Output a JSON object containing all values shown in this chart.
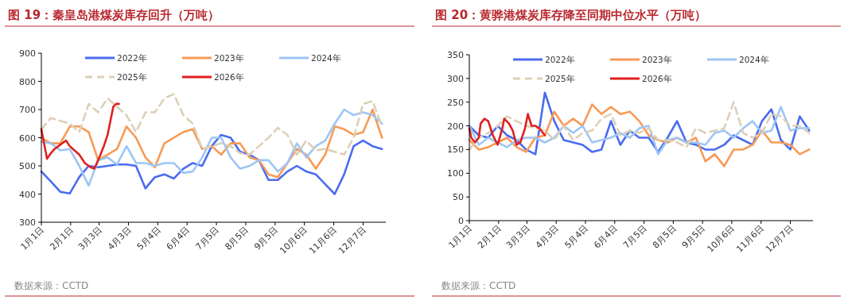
{
  "chart_data": [
    {
      "type": "line",
      "title": "图 19：秦皇岛港煤炭库存回升（万吨）",
      "annotations": [
        "数据来源：CCTD"
      ],
      "legend": "top",
      "x": [
        "--01-01",
        "--01-11",
        "--01-21",
        "--01-31",
        "--02-10",
        "--02-20",
        "--03-02",
        "--03-12",
        "--03-22",
        "--04-01",
        "--04-11",
        "--04-21",
        "--05-01",
        "--05-11",
        "--05-21",
        "--05-31",
        "--06-10",
        "--06-20",
        "--06-30",
        "--07-10",
        "--07-20",
        "--07-30",
        "--08-09",
        "--08-19",
        "--08-29",
        "--09-08",
        "--09-18",
        "--09-28",
        "--10-08",
        "--10-18",
        "--10-28",
        "--11-07",
        "--11-17",
        "--11-27",
        "--12-07",
        "--12-17",
        "--12-27"
      ],
      "xlim": [
        "--01-01",
        "--12-31"
      ],
      "xticks": [
        {
          "value": "--01-01",
          "label": "1月1日"
        },
        {
          "value": "--02-01",
          "label": "2月1日"
        },
        {
          "value": "--03-03",
          "label": "3月3日"
        },
        {
          "value": "--04-03",
          "label": "4月3日"
        },
        {
          "value": "--05-04",
          "label": "5月4日"
        },
        {
          "value": "--06-04",
          "label": "6月4日"
        },
        {
          "value": "--07-05",
          "label": "7月5日"
        },
        {
          "value": "--08-05",
          "label": "8月5日"
        },
        {
          "value": "--09-05",
          "label": "9月5日"
        },
        {
          "value": "--10-06",
          "label": "10月6日"
        },
        {
          "value": "--11-06",
          "label": "11月6日"
        },
        {
          "value": "--12-07",
          "label": "12月7日"
        }
      ],
      "ylim": [
        300,
        900
      ],
      "yticks": [
        300,
        400,
        500,
        600,
        700,
        800,
        900
      ],
      "series": [
        {
          "name": "2022年",
          "color": "#4a6cf0",
          "line_style": "solid",
          "values": [
            480,
            445,
            408,
            402,
            460,
            500,
            495,
            500,
            505,
            505,
            500,
            420,
            460,
            470,
            455,
            490,
            510,
            500,
            570,
            610,
            600,
            550,
            540,
            520,
            450,
            450,
            480,
            500,
            480,
            470,
            435,
            400,
            470,
            570,
            590,
            570,
            560
          ]
        },
        {
          "name": "2023年",
          "color": "#f79a55",
          "line_style": "solid",
          "values": [
            600,
            580,
            580,
            640,
            640,
            620,
            520,
            540,
            560,
            640,
            600,
            530,
            495,
            580,
            600,
            620,
            630,
            560,
            570,
            540,
            580,
            580,
            530,
            520,
            470,
            460,
            510,
            560,
            540,
            490,
            540,
            640,
            630,
            610,
            620,
            700,
            600
          ]
        },
        {
          "name": "2024年",
          "color": "#9ec6f5",
          "line_style": "solid",
          "values": [
            585,
            580,
            555,
            560,
            500,
            430,
            520,
            530,
            505,
            570,
            510,
            510,
            500,
            510,
            510,
            475,
            480,
            530,
            600,
            600,
            530,
            490,
            500,
            520,
            520,
            480,
            510,
            580,
            530,
            570,
            590,
            650,
            700,
            680,
            690,
            680,
            650
          ]
        },
        {
          "name": "2025年",
          "color": "#ddd0b8",
          "line_style": "dashed",
          "values": [
            630,
            670,
            660,
            650,
            620,
            720,
            690,
            740,
            710,
            680,
            620,
            690,
            690,
            740,
            755,
            680,
            650,
            560,
            570,
            580,
            570,
            545,
            540,
            570,
            600,
            635,
            610,
            540,
            590,
            555,
            560,
            550,
            540,
            600,
            720,
            730,
            640
          ]
        },
        {
          "name": "2026年",
          "color": "#e02020",
          "line_style": "solid",
          "x": [
            "--01-01",
            "--01-05",
            "--01-07",
            "--01-11",
            "--01-15",
            "--01-21",
            "--01-27",
            "--01-31",
            "--02-05",
            "--02-10",
            "--02-16",
            "--02-22",
            "--02-26",
            "--03-02",
            "--03-08",
            "--03-12",
            "--03-15",
            "--03-18",
            "--03-21",
            "--03-24"
          ],
          "values": [
            630,
            560,
            525,
            545,
            560,
            575,
            590,
            570,
            555,
            540,
            510,
            495,
            490,
            520,
            570,
            610,
            660,
            710,
            720,
            720
          ]
        }
      ]
    },
    {
      "type": "line",
      "title": "图 20：黄骅港煤炭库存降至同期中位水平（万吨）",
      "annotations": [
        "数据来源：CCTD"
      ],
      "legend": "top",
      "x": [
        "--01-01",
        "--01-11",
        "--01-21",
        "--01-31",
        "--02-10",
        "--02-20",
        "--03-02",
        "--03-12",
        "--03-22",
        "--04-01",
        "--04-11",
        "--04-21",
        "--05-01",
        "--05-11",
        "--05-21",
        "--05-31",
        "--06-10",
        "--06-20",
        "--06-30",
        "--07-10",
        "--07-20",
        "--07-30",
        "--08-09",
        "--08-19",
        "--08-29",
        "--09-08",
        "--09-18",
        "--09-28",
        "--10-08",
        "--10-18",
        "--10-28",
        "--11-07",
        "--11-17",
        "--11-27",
        "--12-07",
        "--12-17",
        "--12-27"
      ],
      "xlim": [
        "--01-01",
        "--12-31"
      ],
      "xticks": [
        {
          "value": "--01-01",
          "label": "1月1日"
        },
        {
          "value": "--02-01",
          "label": "2月1日"
        },
        {
          "value": "--03-03",
          "label": "3月3日"
        },
        {
          "value": "--04-03",
          "label": "4月3日"
        },
        {
          "value": "--05-04",
          "label": "5月4日"
        },
        {
          "value": "--06-04",
          "label": "6月4日"
        },
        {
          "value": "--07-05",
          "label": "7月5日"
        },
        {
          "value": "--08-05",
          "label": "8月5日"
        },
        {
          "value": "--09-05",
          "label": "9月5日"
        },
        {
          "value": "--10-06",
          "label": "10月6日"
        },
        {
          "value": "--11-06",
          "label": "11月6日"
        },
        {
          "value": "--12-07",
          "label": "12月7日"
        }
      ],
      "ylim": [
        0,
        350
      ],
      "yticks": [
        0,
        50,
        100,
        150,
        200,
        250,
        300,
        350
      ],
      "series": [
        {
          "name": "2022年",
          "color": "#4a6cf0",
          "line_style": "solid",
          "values": [
            200,
            180,
            175,
            200,
            180,
            170,
            150,
            140,
            270,
            210,
            170,
            165,
            160,
            145,
            150,
            210,
            160,
            190,
            175,
            175,
            145,
            175,
            210,
            165,
            160,
            150,
            150,
            160,
            180,
            170,
            160,
            210,
            235,
            170,
            150,
            220,
            190
          ]
        },
        {
          "name": "2023年",
          "color": "#f79a55",
          "line_style": "solid",
          "values": [
            170,
            150,
            155,
            165,
            175,
            155,
            145,
            175,
            180,
            230,
            200,
            215,
            200,
            245,
            225,
            240,
            225,
            230,
            210,
            180,
            170,
            165,
            175,
            165,
            175,
            125,
            140,
            115,
            150,
            150,
            160,
            190,
            165,
            165,
            160,
            140,
            150
          ]
        },
        {
          "name": "2024年",
          "color": "#9ec6f5",
          "line_style": "solid",
          "values": [
            200,
            160,
            175,
            165,
            155,
            170,
            175,
            175,
            165,
            175,
            200,
            185,
            200,
            165,
            170,
            175,
            185,
            175,
            195,
            200,
            140,
            170,
            175,
            165,
            165,
            160,
            185,
            190,
            175,
            195,
            210,
            185,
            190,
            240,
            190,
            195,
            195
          ]
        },
        {
          "name": "2025年",
          "color": "#ddd0b8",
          "line_style": "dashed",
          "values": [
            150,
            175,
            185,
            200,
            220,
            210,
            200,
            195,
            190,
            170,
            200,
            170,
            185,
            190,
            215,
            225,
            180,
            190,
            185,
            195,
            170,
            170,
            165,
            155,
            195,
            185,
            190,
            195,
            250,
            185,
            175,
            185,
            225,
            220,
            200,
            200,
            185
          ]
        },
        {
          "name": "2026年",
          "color": "#e02020",
          "line_style": "solid",
          "x": [
            "--01-01",
            "--01-03",
            "--01-07",
            "--01-11",
            "--01-13",
            "--01-17",
            "--01-21",
            "--01-26",
            "--01-31",
            "--02-05",
            "--02-07",
            "--02-12",
            "--02-16",
            "--02-20",
            "--02-24",
            "--03-01",
            "--03-04",
            "--03-08",
            "--03-12",
            "--03-16",
            "--03-20",
            "--03-22"
          ],
          "values": [
            195,
            175,
            165,
            175,
            205,
            215,
            210,
            180,
            160,
            195,
            215,
            205,
            190,
            160,
            165,
            195,
            225,
            200,
            200,
            195,
            185,
            180
          ]
        }
      ]
    }
  ]
}
